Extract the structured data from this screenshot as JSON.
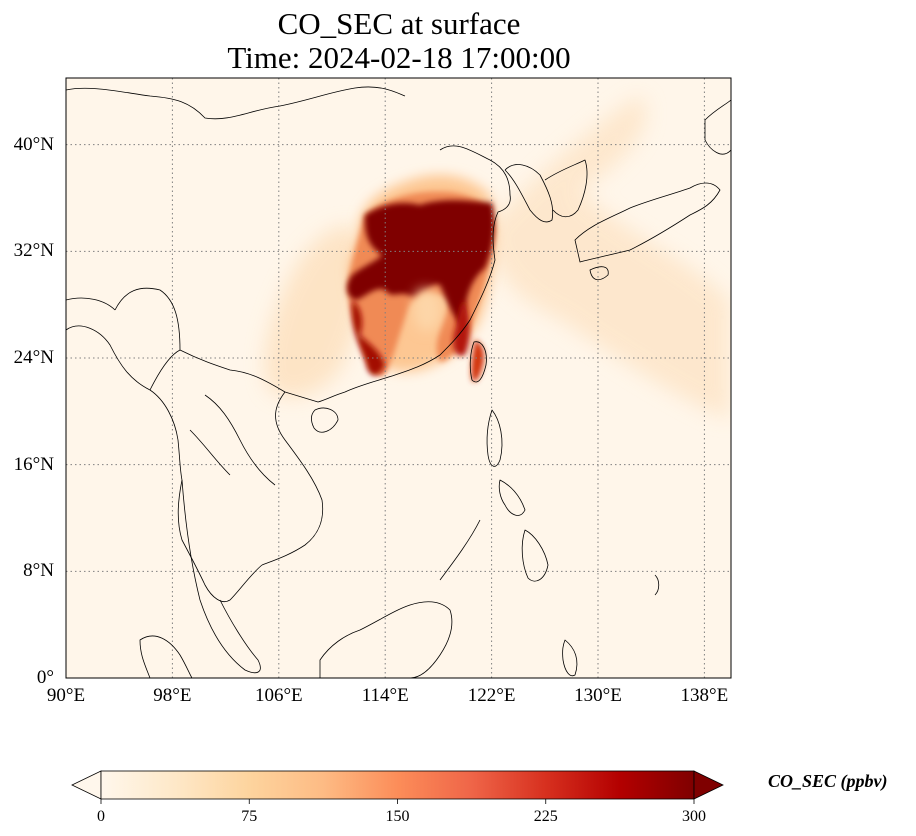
{
  "title": {
    "line1": "CO_SEC at surface",
    "line2": "Time: 2024-02-18 17:00:00"
  },
  "map": {
    "projection": "PlateCarree",
    "lon_range": [
      90,
      140
    ],
    "lat_range": [
      0,
      45
    ],
    "gridlines": "dotted",
    "lon_ticks": [
      {
        "value": 90,
        "label": "90°E"
      },
      {
        "value": 98,
        "label": "98°E"
      },
      {
        "value": 106,
        "label": "106°E"
      },
      {
        "value": 114,
        "label": "114°E"
      },
      {
        "value": 122,
        "label": "122°E"
      },
      {
        "value": 130,
        "label": "130°E"
      },
      {
        "value": 138,
        "label": "138°E"
      }
    ],
    "lat_ticks": [
      {
        "value": 0,
        "label": "0°"
      },
      {
        "value": 8,
        "label": "8°N"
      },
      {
        "value": 16,
        "label": "16°N"
      },
      {
        "value": 24,
        "label": "24°N"
      },
      {
        "value": 32,
        "label": "32°N"
      },
      {
        "value": 40,
        "label": "40°N"
      }
    ],
    "colormap": "OrRd",
    "background_color": "#fff6ea",
    "coastline_color": "#000000"
  },
  "colorbar": {
    "label": "CO_SEC (ppbv)",
    "min": 0,
    "max": 300,
    "extend": "both",
    "ticks": [
      {
        "value": 0,
        "label": "0"
      },
      {
        "value": 75,
        "label": "75"
      },
      {
        "value": 150,
        "label": "150"
      },
      {
        "value": 225,
        "label": "225"
      },
      {
        "value": 300,
        "label": "300"
      }
    ],
    "colors": [
      "#fff7ec",
      "#fee8c8",
      "#fdd49e",
      "#fdbb84",
      "#fc8d59",
      "#ef6548",
      "#d7301f",
      "#b30000",
      "#7f0000"
    ]
  }
}
